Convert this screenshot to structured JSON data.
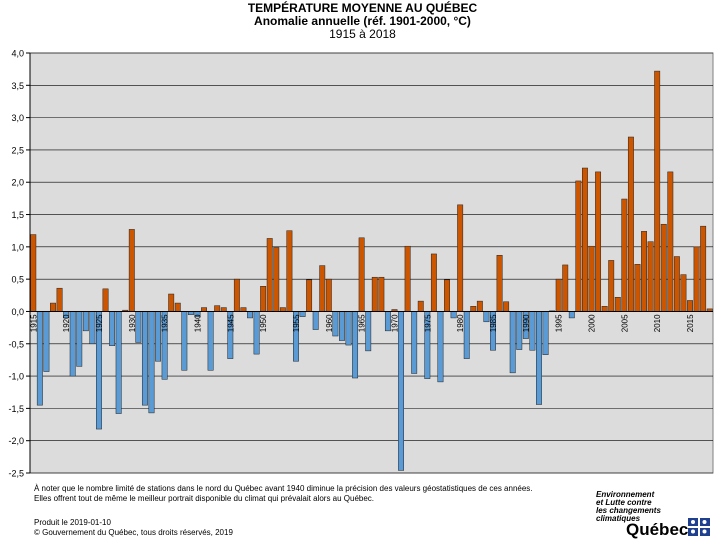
{
  "title": {
    "line1": "TEMPÉRATURE MOYENNE AU QUÉBEC",
    "line2": "Anomalie annuelle (réf. 1901-2000, °C)",
    "line3": "1915 à 2018"
  },
  "note": {
    "line1": "À noter que le nombre limité de stations dans le nord du Québec avant 1940 diminue la précision des valeurs géostatistiques de ces années.",
    "line2": "Elles offrent tout de même le meilleur portrait disponible du climat qui prévalait alors au Québec."
  },
  "footer": {
    "produced": "Produit le 2019-01-10",
    "copyright": "© Gouvernement du Québec, tous droits réservés, 2019"
  },
  "logo": {
    "line1": "Environnement",
    "line2": "et Lutte contre",
    "line3": "les changements",
    "line4": "climatiques",
    "wordmark": "Québec"
  },
  "colors": {
    "positive": "#CC5500",
    "negative": "#5B9BD5",
    "plot_bg": "#DCDCDC",
    "grid": "#000000",
    "logo_blue": "#1F3F8F"
  },
  "chart_data": {
    "type": "bar",
    "x": [
      1915,
      1916,
      1917,
      1918,
      1919,
      1920,
      1921,
      1922,
      1923,
      1924,
      1925,
      1926,
      1927,
      1928,
      1929,
      1930,
      1931,
      1932,
      1933,
      1934,
      1935,
      1936,
      1937,
      1938,
      1939,
      1940,
      1941,
      1942,
      1943,
      1944,
      1945,
      1946,
      1947,
      1948,
      1949,
      1950,
      1951,
      1952,
      1953,
      1954,
      1955,
      1956,
      1957,
      1958,
      1959,
      1960,
      1961,
      1962,
      1963,
      1964,
      1965,
      1966,
      1967,
      1968,
      1969,
      1970,
      1971,
      1972,
      1973,
      1974,
      1975,
      1976,
      1977,
      1978,
      1979,
      1980,
      1981,
      1982,
      1983,
      1984,
      1985,
      1986,
      1987,
      1988,
      1989,
      1990,
      1991,
      1992,
      1993,
      1994,
      1995,
      1996,
      1997,
      1998,
      1999,
      2000,
      2001,
      2002,
      2003,
      2004,
      2005,
      2006,
      2007,
      2008,
      2009,
      2010,
      2011,
      2012,
      2013,
      2014,
      2015,
      2016,
      2017,
      2018
    ],
    "values": [
      1.19,
      -1.45,
      -0.93,
      0.13,
      0.36,
      -0.1,
      -1.0,
      -0.85,
      -0.3,
      -0.5,
      -1.82,
      0.35,
      -0.53,
      -1.58,
      0.02,
      1.27,
      -0.48,
      -1.45,
      -1.57,
      -0.77,
      -1.05,
      0.27,
      0.13,
      -0.91,
      -0.05,
      -0.08,
      0.06,
      -0.91,
      0.09,
      0.06,
      -0.73,
      0.5,
      0.06,
      -0.1,
      -0.66,
      0.39,
      1.13,
      0.99,
      0.06,
      1.25,
      -0.77,
      -0.08,
      0.49,
      -0.28,
      0.71,
      0.5,
      -0.38,
      -0.45,
      -0.52,
      -1.03,
      1.14,
      -0.61,
      0.53,
      0.53,
      -0.3,
      0.03,
      -2.46,
      1.01,
      -0.96,
      0.16,
      -1.04,
      0.89,
      -1.09,
      0.49,
      -0.1,
      1.65,
      -0.73,
      0.08,
      0.16,
      -0.16,
      -0.6,
      0.87,
      0.15,
      -0.95,
      -0.59,
      -0.42,
      -0.6,
      -1.44,
      -0.67,
      0.01,
      0.5,
      0.72,
      -0.1,
      2.02,
      2.22,
      1.01,
      2.16,
      0.08,
      0.79,
      0.22,
      1.74,
      2.7,
      0.73,
      1.24,
      1.08,
      3.72,
      1.35,
      2.16,
      0.85,
      0.57,
      0.17,
      1.0,
      1.32,
      0.04
    ],
    "tick_labels": [
      "1915",
      "1920",
      "1925",
      "1930",
      "1935",
      "1940",
      "1945",
      "1950",
      "1955",
      "1960",
      "1965",
      "1970",
      "1975",
      "1980",
      "1985",
      "1990",
      "1995",
      "2000",
      "2005",
      "2010",
      "2015"
    ],
    "y_ticks": [
      "-2,5",
      "-2,0",
      "-1,5",
      "-1,0",
      "-0,5",
      "0,0",
      "0,5",
      "1,0",
      "1,5",
      "2,0",
      "2,5",
      "3,0",
      "3,5",
      "4,0"
    ],
    "ylim": [
      -2.5,
      4.0
    ],
    "xlabel": "",
    "ylabel": "",
    "grid": true
  }
}
